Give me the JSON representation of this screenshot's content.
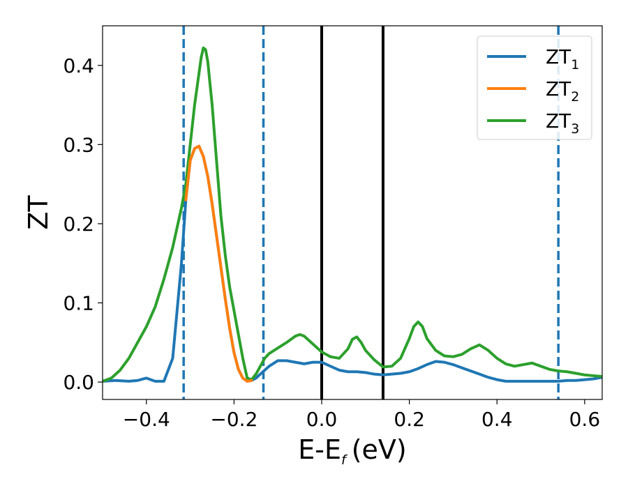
{
  "chart_data": {
    "type": "line",
    "xlabel": "E-E",
    "xlabel_subscript": "f",
    "xlabel_unit": "(eV)",
    "ylabel": "ZT",
    "xlim": [
      -0.5,
      0.64
    ],
    "ylim": [
      -0.022,
      0.45
    ],
    "x_ticks": [
      -0.4,
      -0.2,
      0.0,
      0.2,
      0.4,
      0.6
    ],
    "x_tick_labels": [
      "−0.4",
      "−0.2",
      "0.0",
      "0.2",
      "0.4",
      "0.6"
    ],
    "y_ticks": [
      0.0,
      0.1,
      0.2,
      0.3,
      0.4
    ],
    "y_tick_labels": [
      "0.0",
      "0.1",
      "0.2",
      "0.3",
      "0.4"
    ],
    "grid": false,
    "legend_position": "top-right",
    "colors": {
      "ZT1": "#1f77b4",
      "ZT2": "#ff7f0e",
      "ZT3": "#2ca02c",
      "vline": "#000000"
    },
    "series": [
      {
        "name": "ZT",
        "subscript": "1",
        "color": "#1f77b4",
        "x": [
          -0.5,
          -0.47,
          -0.44,
          -0.42,
          -0.4,
          -0.38,
          -0.36,
          -0.34,
          -0.32,
          -0.31,
          -0.3,
          -0.29,
          -0.28,
          -0.27,
          -0.26,
          -0.25,
          -0.24,
          -0.23,
          -0.22,
          -0.21,
          -0.2,
          -0.19,
          -0.18,
          -0.17,
          -0.16,
          -0.15,
          -0.14,
          -0.13,
          -0.12,
          -0.1,
          -0.08,
          -0.06,
          -0.04,
          -0.02,
          0.0,
          0.02,
          0.04,
          0.06,
          0.08,
          0.1,
          0.12,
          0.14,
          0.16,
          0.18,
          0.2,
          0.22,
          0.24,
          0.26,
          0.28,
          0.3,
          0.32,
          0.34,
          0.36,
          0.38,
          0.4,
          0.42,
          0.44,
          0.46,
          0.48,
          0.5,
          0.52,
          0.54,
          0.56,
          0.58,
          0.6,
          0.62,
          0.64
        ],
        "y": [
          0.001,
          0.002,
          0.001,
          0.002,
          0.005,
          0.001,
          0.001,
          0.03,
          0.15,
          0.23,
          0.28,
          0.295,
          0.298,
          0.285,
          0.26,
          0.225,
          0.185,
          0.145,
          0.105,
          0.068,
          0.037,
          0.016,
          0.005,
          0.001,
          0.002,
          0.005,
          0.01,
          0.015,
          0.02,
          0.027,
          0.027,
          0.025,
          0.023,
          0.025,
          0.025,
          0.02,
          0.015,
          0.013,
          0.013,
          0.012,
          0.01,
          0.009,
          0.01,
          0.011,
          0.013,
          0.017,
          0.022,
          0.026,
          0.025,
          0.022,
          0.018,
          0.014,
          0.01,
          0.006,
          0.003,
          0.001,
          0.001,
          0.001,
          0.001,
          0.001,
          0.001,
          0.001,
          0.002,
          0.002,
          0.003,
          0.004,
          0.006
        ]
      },
      {
        "name": "ZT",
        "subscript": "2",
        "color": "#ff7f0e",
        "x": [
          -0.31,
          -0.3,
          -0.29,
          -0.28,
          -0.27,
          -0.26,
          -0.25,
          -0.24,
          -0.23,
          -0.22,
          -0.21,
          -0.2,
          -0.19,
          -0.18,
          -0.17,
          -0.16
        ],
        "y": [
          0.23,
          0.28,
          0.295,
          0.298,
          0.285,
          0.26,
          0.225,
          0.185,
          0.145,
          0.105,
          0.068,
          0.037,
          0.016,
          0.005,
          0.001,
          0.002
        ]
      },
      {
        "name": "ZT",
        "subscript": "3",
        "color": "#2ca02c",
        "x": [
          -0.5,
          -0.48,
          -0.46,
          -0.44,
          -0.42,
          -0.4,
          -0.38,
          -0.36,
          -0.34,
          -0.32,
          -0.31,
          -0.3,
          -0.29,
          -0.28,
          -0.275,
          -0.27,
          -0.265,
          -0.26,
          -0.25,
          -0.24,
          -0.23,
          -0.22,
          -0.21,
          -0.2,
          -0.19,
          -0.18,
          -0.17,
          -0.16,
          -0.15,
          -0.14,
          -0.13,
          -0.12,
          -0.1,
          -0.08,
          -0.06,
          -0.05,
          -0.04,
          -0.02,
          0.0,
          0.02,
          0.04,
          0.06,
          0.07,
          0.08,
          0.09,
          0.1,
          0.12,
          0.14,
          0.16,
          0.18,
          0.2,
          0.21,
          0.22,
          0.23,
          0.24,
          0.26,
          0.28,
          0.3,
          0.32,
          0.34,
          0.36,
          0.38,
          0.4,
          0.42,
          0.44,
          0.46,
          0.48,
          0.5,
          0.52,
          0.54,
          0.56,
          0.58,
          0.6,
          0.62,
          0.64
        ],
        "y": [
          0.001,
          0.005,
          0.015,
          0.03,
          0.05,
          0.07,
          0.095,
          0.13,
          0.17,
          0.22,
          0.25,
          0.3,
          0.35,
          0.39,
          0.41,
          0.422,
          0.42,
          0.405,
          0.35,
          0.28,
          0.21,
          0.16,
          0.12,
          0.09,
          0.06,
          0.03,
          0.005,
          0.003,
          0.01,
          0.02,
          0.03,
          0.036,
          0.043,
          0.05,
          0.058,
          0.06,
          0.058,
          0.048,
          0.038,
          0.032,
          0.03,
          0.042,
          0.054,
          0.057,
          0.05,
          0.04,
          0.028,
          0.019,
          0.02,
          0.03,
          0.055,
          0.07,
          0.076,
          0.07,
          0.055,
          0.04,
          0.033,
          0.032,
          0.035,
          0.042,
          0.047,
          0.04,
          0.03,
          0.023,
          0.02,
          0.022,
          0.024,
          0.02,
          0.016,
          0.014,
          0.013,
          0.011,
          0.009,
          0.008,
          0.007
        ]
      }
    ],
    "vlines": [
      {
        "x": -0.315,
        "style": "dashed",
        "color": "#1f77b4"
      },
      {
        "x": -0.133,
        "style": "dashed",
        "color": "#1f77b4"
      },
      {
        "x": 0.0,
        "style": "solid",
        "color": "#000000"
      },
      {
        "x": 0.14,
        "style": "solid",
        "color": "#000000"
      },
      {
        "x": 0.54,
        "style": "dashed",
        "color": "#1f77b4"
      }
    ]
  }
}
